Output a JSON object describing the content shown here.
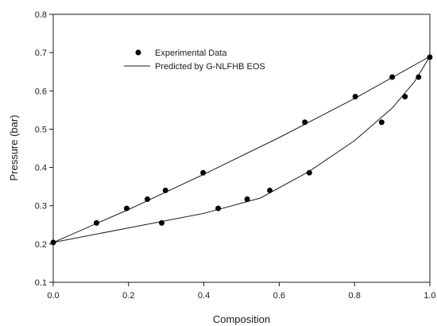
{
  "chart_data": {
    "type": "scatter",
    "title": "",
    "xlabel": "Composition",
    "ylabel": "Pressure (bar)",
    "xlim": [
      0.0,
      1.0
    ],
    "ylim": [
      0.1,
      0.8
    ],
    "xticks": [
      "0.0",
      "0.2",
      "0.4",
      "0.6",
      "0.8",
      "1.0"
    ],
    "yticks": [
      "0.1",
      "0.2",
      "0.3",
      "0.4",
      "0.5",
      "0.6",
      "0.7",
      "0.8"
    ],
    "grid": false,
    "legend_position": "top-left",
    "legend": [
      {
        "label": "Experimental Data",
        "marker": "filled-circle"
      },
      {
        "label": "Predicted by G-NLFHB EOS",
        "marker": "line"
      }
    ],
    "series": [
      {
        "name": "Experimental Data",
        "kind": "scatter",
        "points": [
          {
            "x": 0.0,
            "y": 0.204
          },
          {
            "x": 0.115,
            "y": 0.255
          },
          {
            "x": 0.195,
            "y": 0.293
          },
          {
            "x": 0.25,
            "y": 0.317
          },
          {
            "x": 0.298,
            "y": 0.34
          },
          {
            "x": 0.398,
            "y": 0.386
          },
          {
            "x": 0.668,
            "y": 0.518
          },
          {
            "x": 0.802,
            "y": 0.585
          },
          {
            "x": 0.9,
            "y": 0.636
          },
          {
            "x": 1.0,
            "y": 0.688
          },
          {
            "x": 0.288,
            "y": 0.255
          },
          {
            "x": 0.438,
            "y": 0.293
          },
          {
            "x": 0.515,
            "y": 0.317
          },
          {
            "x": 0.575,
            "y": 0.34
          },
          {
            "x": 0.68,
            "y": 0.386
          },
          {
            "x": 0.872,
            "y": 0.518
          },
          {
            "x": 0.934,
            "y": 0.585
          },
          {
            "x": 0.97,
            "y": 0.636
          }
        ]
      },
      {
        "name": "Predicted by G-NLFHB EOS",
        "kind": "line",
        "curves": [
          [
            {
              "x": 0.0,
              "y": 0.204
            },
            {
              "x": 0.2,
              "y": 0.29
            },
            {
              "x": 0.4,
              "y": 0.382
            },
            {
              "x": 0.6,
              "y": 0.478
            },
            {
              "x": 0.8,
              "y": 0.58
            },
            {
              "x": 1.0,
              "y": 0.69
            }
          ],
          [
            {
              "x": 0.0,
              "y": 0.204
            },
            {
              "x": 0.2,
              "y": 0.242
            },
            {
              "x": 0.4,
              "y": 0.28
            },
            {
              "x": 0.55,
              "y": 0.32
            },
            {
              "x": 0.68,
              "y": 0.39
            },
            {
              "x": 0.8,
              "y": 0.47
            },
            {
              "x": 0.9,
              "y": 0.555
            },
            {
              "x": 0.96,
              "y": 0.625
            },
            {
              "x": 1.0,
              "y": 0.69
            }
          ]
        ]
      }
    ]
  }
}
